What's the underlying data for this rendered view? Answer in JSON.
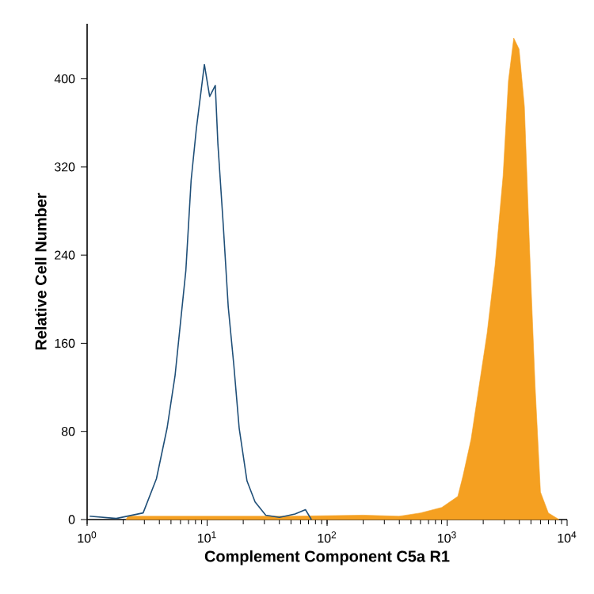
{
  "chart_data": {
    "type": "area",
    "xlabel": "Complement Component C5a R1",
    "ylabel": "Relative Cell Number",
    "log": "x",
    "xlim": [
      1,
      10000
    ],
    "ylim": [
      0,
      450
    ],
    "xticks": [
      {
        "value": 1,
        "label": "10$^{0}$"
      },
      {
        "value": 10,
        "label": "10$^{1}$"
      },
      {
        "value": 100,
        "label": "10$^{2}$"
      },
      {
        "value": 1000,
        "label": "10$^{3}$"
      },
      {
        "value": 10000,
        "label": "10$^{4}$"
      }
    ],
    "yticks": [
      0,
      80,
      {
        "value": 160,
        "label": "160"
      },
      240,
      320,
      400
    ],
    "series": [
      {
        "color": "#f5a021",
        "x": [
          2.1,
          2.2,
          10,
          50,
          200,
          398,
          600,
          903,
          1228,
          1359,
          1585,
          1848,
          2154,
          2512,
          2929,
          3243,
          3593,
          3981,
          4406,
          4886,
          5412,
          5998,
          6982,
          8577
        ],
        "values": [
          0,
          3,
          3,
          3,
          4,
          3,
          6,
          11,
          21,
          40,
          73,
          121,
          169,
          231,
          312,
          398,
          437,
          427,
          375,
          241,
          121,
          25,
          6,
          0
        ]
      },
      {
        "type": "line",
        "color": "#1f4f78",
        "x": [
          1.05,
          1.75,
          2.93,
          3.78,
          4.64,
          5.41,
          5.99,
          6.65,
          7.36,
          8.14,
          9.49,
          10.5,
          11.7,
          12.3,
          13.6,
          15.0,
          16.7,
          18.5,
          21.5,
          25.1,
          30.8,
          40,
          54,
          66,
          74
        ],
        "values": [
          3,
          1,
          6,
          37,
          83,
          131,
          178,
          226,
          308,
          355,
          413,
          384,
          394,
          341,
          269,
          193,
          140,
          83,
          35,
          16,
          4,
          2,
          5,
          9,
          0
        ]
      }
    ]
  }
}
